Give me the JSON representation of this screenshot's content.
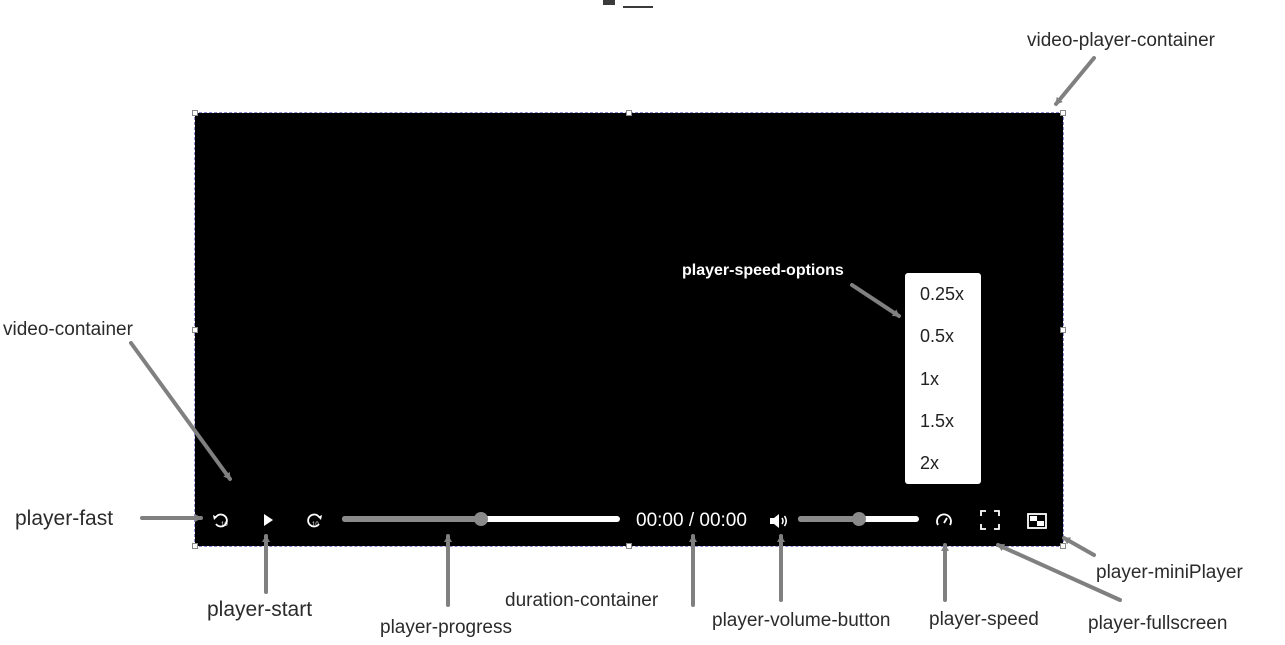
{
  "speed_menu": {
    "options": [
      "0.25x",
      "0.5x",
      "1x",
      "1.5x",
      "2x"
    ]
  },
  "controls": {
    "duration_text": "00:00 / 00:00",
    "progress_fraction": 0.5,
    "volume_fraction": 0.5
  },
  "labels": {
    "video_player_container": "video-player-container",
    "player_speed_options": "player-speed-options",
    "video_container": "video-container",
    "player_fast": "player-fast",
    "player_start": "player-start",
    "player_progress": "player-progress",
    "duration_container": "duration-container",
    "player_volume_button": "player-volume-button",
    "player_speed": "player-speed",
    "player_fullscreen": "player-fullscreen",
    "player_miniplayer": "player-miniPlayer"
  },
  "colors": {
    "player_background": "#000000",
    "arrow": "#808080",
    "bar_played": "#8a8a8a",
    "bar_remaining": "#ffffff"
  }
}
